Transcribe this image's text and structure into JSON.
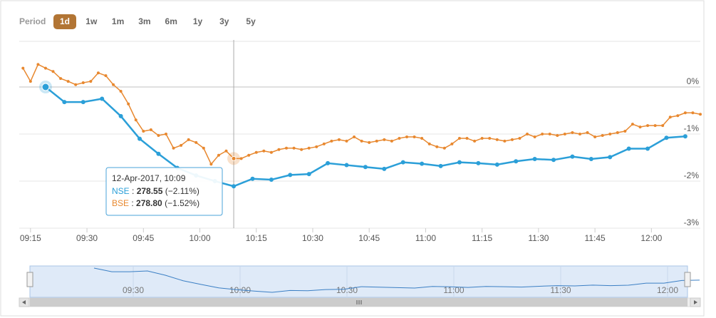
{
  "chart_data": {
    "type": "line",
    "range_selector": {
      "label": "Period",
      "buttons": [
        "1d",
        "1w",
        "1m",
        "3m",
        "6m",
        "1y",
        "3y",
        "5y"
      ],
      "selected": 0
    },
    "xlim": [
      "09:12",
      "12:13"
    ],
    "xticks": [
      "09:15",
      "09:30",
      "09:45",
      "10:00",
      "10:15",
      "10:30",
      "10:45",
      "11:00",
      "11:15",
      "11:30",
      "11:45",
      "12:00"
    ],
    "ylim": [
      -3,
      1
    ],
    "yticks": [
      {
        "value": 0,
        "label": "0%"
      },
      {
        "value": -1,
        "label": "-1%"
      },
      {
        "value": -2,
        "label": "-2%"
      },
      {
        "value": -3,
        "label": "-3%"
      }
    ],
    "grid": true,
    "series": [
      {
        "name": "NSE",
        "color": "#2b9fd8",
        "x": [
          "09:19",
          "09:24",
          "09:29",
          "09:34",
          "09:39",
          "09:44",
          "09:49",
          "09:54",
          "09:59",
          "10:04",
          "10:09",
          "10:14",
          "10:19",
          "10:24",
          "10:29",
          "10:34",
          "10:39",
          "10:44",
          "10:49",
          "10:54",
          "10:59",
          "11:04",
          "11:09",
          "11:14",
          "11:19",
          "11:24",
          "11:29",
          "11:34",
          "11:39",
          "11:44",
          "11:49",
          "11:54",
          "11:59",
          "12:04",
          "12:09"
        ],
        "values": [
          0,
          -0.32,
          -0.32,
          -0.25,
          -0.62,
          -1.1,
          -1.42,
          -1.72,
          -1.88,
          -2.0,
          -2.11,
          -1.95,
          -1.97,
          -1.87,
          -1.85,
          -1.62,
          -1.66,
          -1.7,
          -1.74,
          -1.6,
          -1.63,
          -1.68,
          -1.6,
          -1.62,
          -1.65,
          -1.58,
          -1.53,
          -1.55,
          -1.48,
          -1.53,
          -1.49,
          -1.31,
          -1.31,
          -1.08,
          -1.05
        ]
      },
      {
        "name": "BSE",
        "color": "#e8882f",
        "x": [
          "09:13",
          "09:15",
          "09:17",
          "09:19",
          "09:21",
          "09:23",
          "09:25",
          "09:27",
          "09:29",
          "09:31",
          "09:33",
          "09:35",
          "09:37",
          "09:39",
          "09:41",
          "09:43",
          "09:45",
          "09:47",
          "09:49",
          "09:51",
          "09:53",
          "09:55",
          "09:57",
          "09:59",
          "10:01",
          "10:03",
          "10:05",
          "10:07",
          "10:09",
          "10:11",
          "10:13",
          "10:15",
          "10:17",
          "10:19",
          "10:21",
          "10:23",
          "10:25",
          "10:27",
          "10:29",
          "10:31",
          "10:33",
          "10:35",
          "10:37",
          "10:39",
          "10:41",
          "10:43",
          "10:45",
          "10:47",
          "10:49",
          "10:51",
          "10:53",
          "10:55",
          "10:57",
          "10:59",
          "11:01",
          "11:03",
          "11:05",
          "11:07",
          "11:09",
          "11:11",
          "11:13",
          "11:15",
          "11:17",
          "11:19",
          "11:21",
          "11:23",
          "11:25",
          "11:27",
          "11:29",
          "11:31",
          "11:33",
          "11:35",
          "11:37",
          "11:39",
          "11:41",
          "11:43",
          "11:45",
          "11:47",
          "11:49",
          "11:51",
          "11:53",
          "11:55",
          "11:57",
          "11:59",
          "12:01",
          "12:03",
          "12:05",
          "12:07",
          "12:09",
          "12:11",
          "12:13"
        ],
        "values": [
          0.4,
          0.12,
          0.48,
          0.4,
          0.33,
          0.18,
          0.12,
          0.05,
          0.09,
          0.12,
          0.3,
          0.24,
          0.05,
          -0.09,
          -0.36,
          -0.7,
          -0.94,
          -0.91,
          -1.03,
          -1.0,
          -1.3,
          -1.24,
          -1.12,
          -1.18,
          -1.3,
          -1.64,
          -1.45,
          -1.36,
          -1.52,
          -1.52,
          -1.45,
          -1.39,
          -1.36,
          -1.39,
          -1.33,
          -1.3,
          -1.3,
          -1.33,
          -1.3,
          -1.27,
          -1.21,
          -1.15,
          -1.12,
          -1.15,
          -1.06,
          -1.15,
          -1.18,
          -1.15,
          -1.12,
          -1.15,
          -1.09,
          -1.06,
          -1.06,
          -1.09,
          -1.21,
          -1.27,
          -1.3,
          -1.21,
          -1.09,
          -1.09,
          -1.15,
          -1.09,
          -1.09,
          -1.12,
          -1.15,
          -1.12,
          -1.09,
          -1.0,
          -1.06,
          -1.0,
          -1.0,
          -1.03,
          -1.0,
          -0.97,
          -1.0,
          -0.97,
          -1.06,
          -1.03,
          -1.0,
          -0.97,
          -0.94,
          -0.79,
          -0.85,
          -0.82,
          -0.82,
          -0.82,
          -0.64,
          -0.61,
          -0.55,
          -0.55,
          -0.58
        ]
      }
    ],
    "tooltip": {
      "x": "10:09",
      "date": "12-Apr-2017, 10:09",
      "points": [
        0,
        28
      ],
      "rows": [
        {
          "separator": " : ",
          "price": "278.55",
          "change": " (−2.11%)"
        },
        {
          "separator": " : ",
          "price": "278.80",
          "change": " (−1.52%)"
        }
      ]
    },
    "navigator": {
      "xticks": [
        "09:30",
        "10:00",
        "10:30",
        "11:00",
        "11:30",
        "12:00"
      ]
    }
  }
}
